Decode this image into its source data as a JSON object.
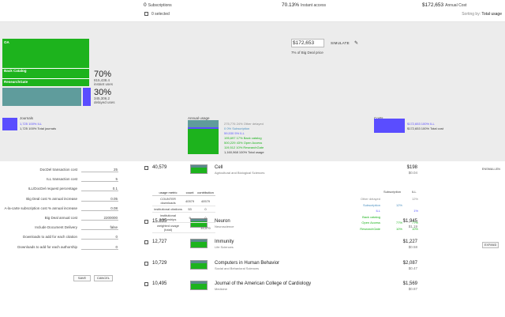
{
  "topbar": {
    "subscriptions_count": "0",
    "subscriptions_label": "Subscriptions",
    "instant_pct": "70.13%",
    "instant_label": "Instant access",
    "annual_cost": "$172,653",
    "annual_cost_label": "Annual Cost",
    "selected": "0 selected",
    "sort_label": "Sorting by:",
    "sort_value": "Total usage"
  },
  "overview": {
    "blocks": {
      "oa": "OA",
      "back_catalog": "Back Catalog",
      "researchgate": "ResearchGate"
    },
    "instant_pct": "70%",
    "instant_count": "815,438.4",
    "instant_label": "instant uses",
    "delayed_pct": "30%",
    "delayed_count": "345,306.2",
    "delayed_label": "delayed uses",
    "price_value": "172,653",
    "price_prefix": "$",
    "simulate_label": "SIMULATE",
    "big_deal_text": "7% of Big Deal price",
    "journals": {
      "title": "Journals",
      "line1": "1,725 100% ILL",
      "line2": "1,725 100% Total journals"
    },
    "annual_usage": {
      "title": "Annual usage",
      "lines": [
        {
          "text": "275,776  24% Other delayed",
          "color": "#888888"
        },
        {
          "text": "0  0% Subscription",
          "color": "#4a90c0"
        },
        {
          "text": "59,530  5% ILL",
          "color": "#5a5aff"
        },
        {
          "text": "195,697  17% Back catalog",
          "color": "#1db31d"
        },
        {
          "text": "500,229  43% Open Access",
          "color": "#1db31d"
        },
        {
          "text": "119,512  10% ResearchGate",
          "color": "#1db31d"
        },
        {
          "text": "1,160,968  100% Total usage",
          "color": "#333333"
        }
      ]
    },
    "costs": {
      "title": "Costs",
      "line1": "$172,653 100% ILL",
      "line2": "$172,653 100% Total cost"
    }
  },
  "settings": {
    "fields": [
      {
        "label": "DocDel transaction cost",
        "value": "25"
      },
      {
        "label": "ILL transaction cost",
        "value": "5"
      },
      {
        "label": "ILL/DocDel request percentage",
        "value": "0.1"
      },
      {
        "label": "Big Deal cost % annual increase",
        "value": "0.05"
      },
      {
        "label": "A-la-carte subscription cost % annual increase",
        "value": "0.08"
      },
      {
        "label": "Big Deal annual cost",
        "value": "2200000"
      },
      {
        "label": "Include Document Delivery",
        "value": "false"
      },
      {
        "label": "Downloads to add for each citation",
        "value": "0"
      },
      {
        "label": "Downloads to add for each authorship",
        "value": "0"
      }
    ],
    "save": "SAVE",
    "cancel": "CANCEL"
  },
  "journals": [
    {
      "count": "40,579",
      "name": "Cell",
      "subject": "Agricultural and Biological Sciences",
      "price": "$198",
      "price_sub": "$0.04",
      "action": "ENSMALLEN"
    },
    {
      "count": "15,835",
      "name": "Neuron",
      "subject": "Neuroscience",
      "price": "$1,945",
      "price_sub": "$1.19",
      "action": ""
    },
    {
      "count": "12,727",
      "name": "Immunity",
      "subject": "Life Sciences",
      "price": "$1,227",
      "price_sub": "$0.58",
      "action": "EXPAND"
    },
    {
      "count": "10,729",
      "name": "Computers in Human Behavior",
      "subject": "Social and Behavioral Sciences",
      "price": "$2,087",
      "price_sub": "$0.47",
      "action": ""
    },
    {
      "count": "10,495",
      "name": "Journal of the American College of Cardiology",
      "subject": "Medicine",
      "price": "$1,569",
      "price_sub": "$0.87",
      "action": ""
    }
  ],
  "usage_table": {
    "headers": [
      "usage metric",
      "count",
      "contribution"
    ],
    "rows": [
      [
        "COUNTER downloads",
        "40579",
        "40579"
      ],
      [
        "institutional citations",
        "53",
        "0"
      ],
      [
        "institutional authorships",
        "9",
        "0"
      ],
      [
        "weighted usage (total)",
        "",
        "40,579"
      ]
    ]
  },
  "sub_table": {
    "headers": [
      "Subscription",
      "ILL"
    ],
    "rows": [
      {
        "label": "Other delayed",
        "a": "",
        "b": "12%",
        "color": "#888888"
      },
      {
        "label": "Subscription",
        "a": "12%",
        "b": "",
        "color": "#4a90c0"
      },
      {
        "label": "ILL",
        "a": "",
        "b": "1%",
        "color": "#5a5aff"
      },
      {
        "label": "Back catalog",
        "a": "",
        "b": "",
        "color": "#1db31d"
      },
      {
        "label": "Open Access",
        "a": "77%",
        "b": "77%",
        "color": "#1db31d"
      },
      {
        "label": "ResearchGate",
        "a": "10%",
        "b": "10%",
        "color": "#1db31d"
      }
    ]
  },
  "colors": {
    "green": "#1db31d",
    "teal": "#5f9c9c",
    "blue": "#5a4dff",
    "gray_band": "#ececec"
  }
}
